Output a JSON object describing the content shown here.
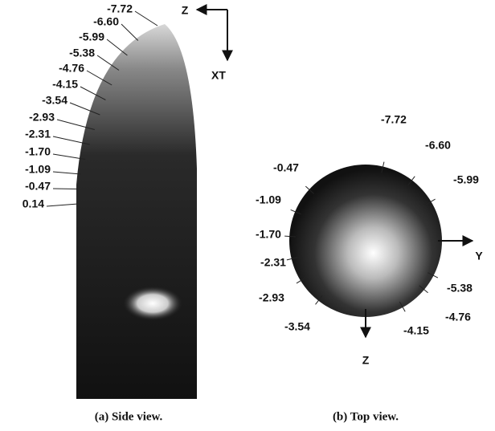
{
  "side_view": {
    "contour_labels": [
      "-7.72",
      "-6.60",
      "-5.99",
      "-5.38",
      "-4.76",
      "-4.15",
      "-3.54",
      "-2.93",
      "-2.31",
      "-1.70",
      "-1.09",
      "-0.47",
      "0.14"
    ],
    "axes": {
      "z": "Z",
      "xt": "XT"
    },
    "caption": "(a) Side view."
  },
  "top_view": {
    "contour_labels": [
      "-7.72",
      "-6.60",
      "-5.99",
      "-0.47",
      "-1.09",
      "-1.70",
      "-2.31",
      "-5.38",
      "-2.93",
      "-4.76",
      "-3.54",
      "-4.15"
    ],
    "axes": {
      "y": "Y",
      "z": "Z"
    },
    "caption": "(b) Top view."
  }
}
